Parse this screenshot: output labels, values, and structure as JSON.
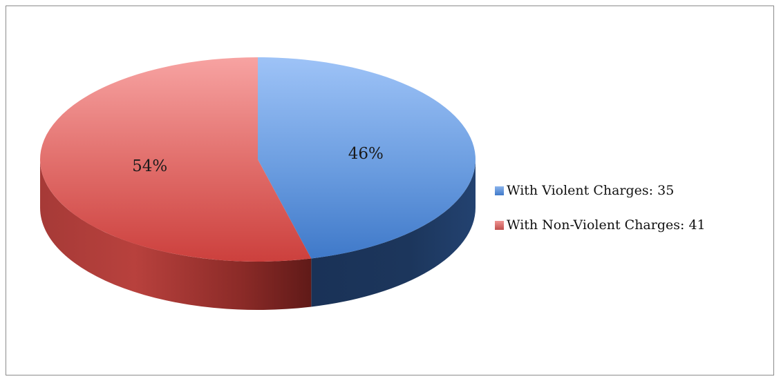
{
  "chart_data": {
    "type": "pie",
    "style": "3d",
    "title": "",
    "legend_position": "right",
    "slices": [
      {
        "label": "With Violent Charges: 35",
        "value": 35,
        "percent_label": "46%",
        "color": "#4f81bd"
      },
      {
        "label": "With Non-Violent Charges: 41",
        "value": 41,
        "percent_label": "54%",
        "color": "#c0504d"
      }
    ]
  }
}
